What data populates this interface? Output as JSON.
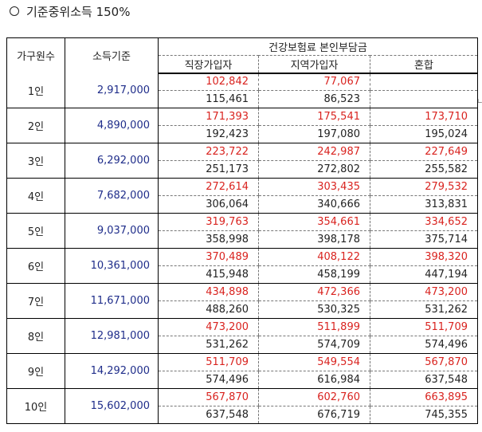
{
  "heading": {
    "text": "기준중위소득 150%"
  },
  "table": {
    "col_household": "가구원수",
    "col_income": "소득기준",
    "col_group": "건강보험료 본인부담금",
    "col_employee": "직장가입자",
    "col_regional": "지역가입자",
    "col_mixed": "혼합",
    "rows": [
      {
        "household": "1인",
        "income": "2,917,000",
        "employee": [
          "102,842",
          "115,461"
        ],
        "regional": [
          "77,067",
          "86,523"
        ],
        "mixed": [
          "",
          ""
        ]
      },
      {
        "household": "2인",
        "income": "4,890,000",
        "employee": [
          "171,393",
          "192,423"
        ],
        "regional": [
          "175,541",
          "197,080"
        ],
        "mixed": [
          "173,710",
          "195,024"
        ]
      },
      {
        "household": "3인",
        "income": "6,292,000",
        "employee": [
          "223,722",
          "251,173"
        ],
        "regional": [
          "242,987",
          "272,802"
        ],
        "mixed": [
          "227,649",
          "255,582"
        ]
      },
      {
        "household": "4인",
        "income": "7,682,000",
        "employee": [
          "272,614",
          "306,064"
        ],
        "regional": [
          "303,435",
          "340,666"
        ],
        "mixed": [
          "279,532",
          "313,831"
        ]
      },
      {
        "household": "5인",
        "income": "9,037,000",
        "employee": [
          "319,763",
          "358,998"
        ],
        "regional": [
          "354,661",
          "398,178"
        ],
        "mixed": [
          "334,652",
          "375,714"
        ]
      },
      {
        "household": "6인",
        "income": "10,361,000",
        "employee": [
          "370,489",
          "415,948"
        ],
        "regional": [
          "408,122",
          "458,199"
        ],
        "mixed": [
          "398,320",
          "447,194"
        ]
      },
      {
        "household": "7인",
        "income": "11,671,000",
        "employee": [
          "434,898",
          "488,260"
        ],
        "regional": [
          "472,366",
          "530,325"
        ],
        "mixed": [
          "473,200",
          "531,262"
        ]
      },
      {
        "household": "8인",
        "income": "12,981,000",
        "employee": [
          "473,200",
          "531,262"
        ],
        "regional": [
          "511,899",
          "574,709"
        ],
        "mixed": [
          "511,709",
          "574,496"
        ]
      },
      {
        "household": "9인",
        "income": "14,292,000",
        "employee": [
          "511,709",
          "574,496"
        ],
        "regional": [
          "549,554",
          "616,984"
        ],
        "mixed": [
          "567,870",
          "637,548"
        ]
      },
      {
        "household": "10인",
        "income": "15,602,000",
        "employee": [
          "567,870",
          "637,548"
        ],
        "regional": [
          "602,760",
          "676,719"
        ],
        "mixed": [
          "663,895",
          "745,355"
        ]
      }
    ]
  },
  "side_mark": "ㄴ",
  "colors": {
    "upper_value": "#d9231f",
    "income": "#1f2d8a",
    "text": "#222222"
  }
}
